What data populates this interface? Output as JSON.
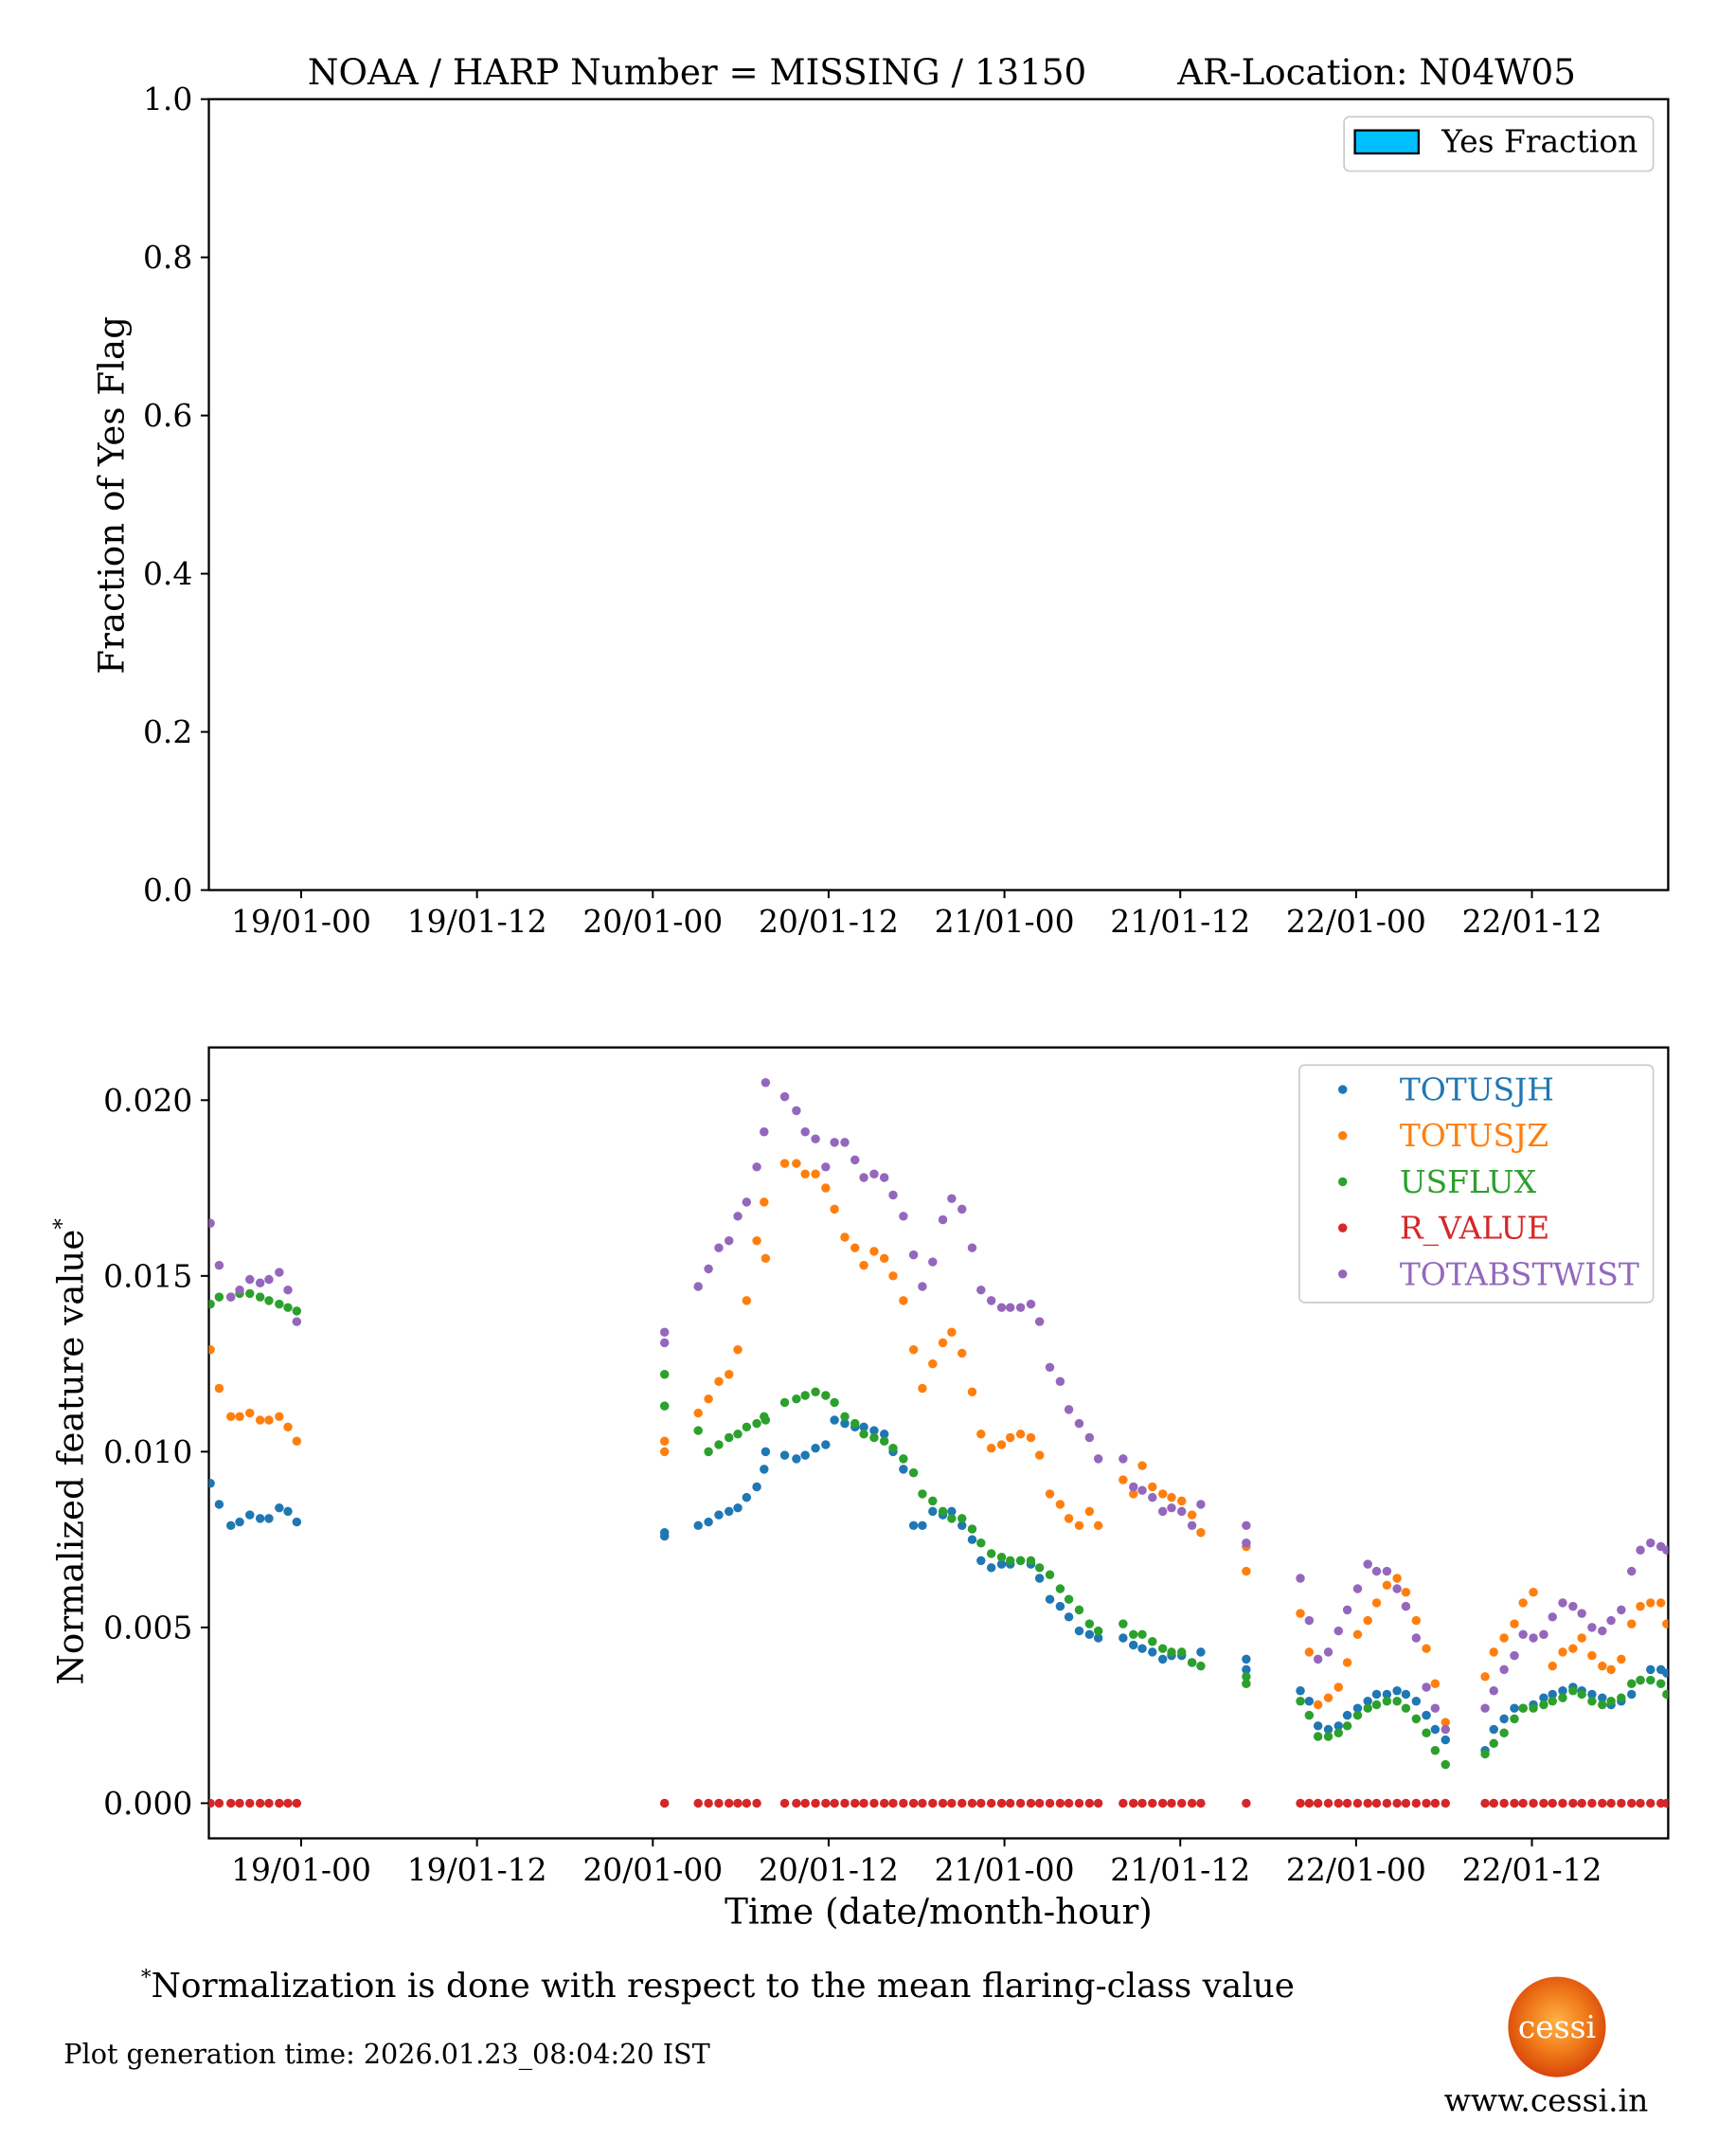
{
  "chart_data": [
    {
      "type": "bar",
      "title": "NOAA / HARP Number = MISSING / 13150      AR-Location: N04W05",
      "title_left": "NOAA / HARP Number = MISSING / 13150",
      "title_right": "AR-Location: N04W05",
      "ylabel": "Fraction of Yes Flag",
      "xlabel": "",
      "ylim": [
        0,
        1.0
      ],
      "xlim_hours": [
        -6.3,
        93.3
      ],
      "yticks": [
        "0.0",
        "0.2",
        "0.4",
        "0.6",
        "0.8",
        "1.0"
      ],
      "ytick_values": [
        0,
        0.2,
        0.4,
        0.6,
        0.8,
        1.0
      ],
      "xticks": [
        "19/01-00",
        "19/01-12",
        "20/01-00",
        "20/01-12",
        "21/01-00",
        "21/01-12",
        "22/01-00",
        "22/01-12"
      ],
      "xtick_hours": [
        0,
        12,
        24,
        36,
        48,
        60,
        72,
        84
      ],
      "legend": [
        {
          "label": "Yes Fraction",
          "color": "#00bfff"
        }
      ],
      "legend_position": "top-right",
      "values": []
    },
    {
      "type": "scatter",
      "ylabel": "Normalized feature value",
      "ylabel_sup": "*",
      "xlabel": "Time (date/month-hour)",
      "ylim": [
        -0.001,
        0.0215
      ],
      "xlim_hours": [
        -6.3,
        93.3
      ],
      "yticks": [
        "0.000",
        "0.005",
        "0.010",
        "0.015",
        "0.020"
      ],
      "ytick_values": [
        0,
        0.005,
        0.01,
        0.015,
        0.02
      ],
      "xticks": [
        "19/01-00",
        "19/01-12",
        "20/01-00",
        "20/01-12",
        "21/01-00",
        "21/01-12",
        "22/01-00",
        "22/01-12"
      ],
      "xtick_hours": [
        0,
        12,
        24,
        36,
        48,
        60,
        72,
        84
      ],
      "legend_position": "top-right",
      "x_hours": [
        -6.2,
        -5.6,
        -4.8,
        -4.2,
        -3.5,
        -2.8,
        -2.2,
        -1.5,
        -0.9,
        -0.3,
        24.8,
        24.8,
        27.1,
        27.8,
        28.5,
        29.2,
        29.8,
        30.4,
        31.1,
        31.6,
        31.7,
        33.0,
        33.8,
        34.4,
        35.1,
        35.8,
        36.4,
        37.1,
        37.8,
        38.4,
        39.1,
        39.8,
        40.4,
        41.1,
        41.8,
        42.4,
        43.1,
        43.8,
        44.4,
        45.1,
        45.8,
        46.4,
        47.1,
        47.8,
        48.4,
        49.1,
        49.8,
        50.4,
        51.1,
        51.8,
        52.4,
        53.1,
        53.8,
        54.4,
        56.1,
        56.8,
        57.4,
        58.1,
        58.8,
        59.4,
        60.1,
        60.8,
        61.4,
        64.5,
        64.5,
        68.2,
        68.8,
        69.4,
        70.1,
        70.8,
        71.4,
        72.1,
        72.8,
        73.4,
        74.1,
        74.8,
        75.4,
        76.1,
        76.8,
        77.4,
        78.1,
        80.8,
        81.4,
        82.1,
        82.8,
        83.4,
        84.1,
        84.8,
        85.4,
        86.1,
        86.8,
        87.4,
        88.1,
        88.8,
        89.4,
        90.1,
        90.8,
        91.4,
        92.1,
        92.8,
        93.2
      ],
      "series": [
        {
          "name": "TOTUSJH",
          "color": "#1f77b4",
          "values": [
            0.0091,
            0.0085,
            0.0079,
            0.008,
            0.0082,
            0.0081,
            0.0081,
            0.0084,
            0.0083,
            0.008,
            0.0076,
            0.0077,
            0.0079,
            0.008,
            0.0082,
            0.0083,
            0.0084,
            0.0087,
            0.009,
            0.0095,
            0.01,
            0.0099,
            0.0098,
            0.0099,
            0.0101,
            0.0102,
            0.0109,
            0.0108,
            0.0107,
            0.0107,
            0.0106,
            0.0105,
            0.01,
            0.0095,
            0.0079,
            0.0079,
            0.0083,
            0.0082,
            0.0083,
            0.0079,
            0.0075,
            0.0069,
            0.0067,
            0.0068,
            0.0068,
            0.0069,
            0.0068,
            0.0064,
            0.0058,
            0.0056,
            0.0053,
            0.0049,
            0.0048,
            0.0047,
            0.0047,
            0.0045,
            0.0044,
            0.0043,
            0.0041,
            0.0042,
            0.0042,
            0.004,
            0.0043,
            0.0041,
            0.0038,
            0.0032,
            0.0029,
            0.0022,
            0.0021,
            0.0022,
            0.0025,
            0.0027,
            0.0029,
            0.0031,
            0.0031,
            0.0032,
            0.0031,
            0.0029,
            0.0025,
            0.0021,
            0.0018,
            0.0015,
            0.0021,
            0.0024,
            0.0027,
            0.0027,
            0.0028,
            0.003,
            0.0031,
            0.0032,
            0.0033,
            0.0032,
            0.0031,
            0.003,
            0.0028,
            0.0029,
            0.0031,
            0.0035,
            0.0038,
            0.0038,
            0.0037
          ]
        },
        {
          "name": "TOTUSJZ",
          "color": "#ff7f0e",
          "values": [
            0.0129,
            0.0118,
            0.011,
            0.011,
            0.0111,
            0.0109,
            0.0109,
            0.011,
            0.0107,
            0.0103,
            0.01,
            0.0103,
            0.0111,
            0.0115,
            0.012,
            0.0122,
            0.0129,
            0.0143,
            0.016,
            0.0171,
            0.0155,
            0.0182,
            0.0182,
            0.0179,
            0.0179,
            0.0175,
            0.0169,
            0.0161,
            0.0158,
            0.0153,
            0.0157,
            0.0155,
            0.015,
            0.0143,
            0.0129,
            0.0118,
            0.0125,
            0.0131,
            0.0134,
            0.0128,
            0.0117,
            0.0105,
            0.0101,
            0.0102,
            0.0104,
            0.0105,
            0.0104,
            0.0099,
            0.0088,
            0.0085,
            0.0081,
            0.0079,
            0.0083,
            0.0079,
            0.0092,
            0.0088,
            0.0096,
            0.009,
            0.0088,
            0.0087,
            0.0086,
            0.0082,
            0.0077,
            0.0073,
            0.0066,
            0.0054,
            0.0043,
            0.0028,
            0.003,
            0.0033,
            0.004,
            0.0048,
            0.0052,
            0.0057,
            0.0062,
            0.0064,
            0.006,
            0.0052,
            0.0044,
            0.0034,
            0.0023,
            0.0036,
            0.0043,
            0.0047,
            0.0051,
            0.0057,
            0.006,
            0.0048,
            0.0039,
            0.0043,
            0.0044,
            0.0047,
            0.0042,
            0.0039,
            0.0038,
            0.0041,
            0.0051,
            0.0056,
            0.0057,
            0.0057,
            0.0051
          ]
        },
        {
          "name": "USFLUX",
          "color": "#2ca02c",
          "values": [
            0.0142,
            0.0144,
            0.0144,
            0.0145,
            0.0145,
            0.0144,
            0.0143,
            0.0142,
            0.0141,
            0.014,
            0.0113,
            0.0122,
            0.0106,
            0.01,
            0.0102,
            0.0104,
            0.0105,
            0.0107,
            0.0108,
            0.011,
            0.0109,
            0.0114,
            0.0115,
            0.0116,
            0.0117,
            0.0116,
            0.0114,
            0.011,
            0.0108,
            0.0105,
            0.0104,
            0.0103,
            0.0101,
            0.0098,
            0.0094,
            0.0088,
            0.0086,
            0.0083,
            0.0081,
            0.0081,
            0.0078,
            0.0074,
            0.0071,
            0.007,
            0.0069,
            0.0069,
            0.0069,
            0.0067,
            0.0065,
            0.0061,
            0.0058,
            0.0055,
            0.0051,
            0.0049,
            0.0051,
            0.0048,
            0.0048,
            0.0046,
            0.0044,
            0.0043,
            0.0043,
            0.004,
            0.0039,
            0.0036,
            0.0034,
            0.0029,
            0.0025,
            0.0019,
            0.0019,
            0.002,
            0.0022,
            0.0025,
            0.0027,
            0.0028,
            0.0029,
            0.0029,
            0.0027,
            0.0024,
            0.002,
            0.0015,
            0.0011,
            0.0014,
            0.0017,
            0.002,
            0.0024,
            0.0027,
            0.0027,
            0.0028,
            0.0029,
            0.003,
            0.0032,
            0.0031,
            0.0029,
            0.0028,
            0.0029,
            0.003,
            0.0034,
            0.0035,
            0.0035,
            0.0034,
            0.0031
          ]
        },
        {
          "name": "R_VALUE",
          "color": "#d62728",
          "values": [
            0,
            0,
            0,
            0,
            0,
            0,
            0,
            0,
            0,
            0,
            0,
            null,
            0,
            0,
            0,
            0,
            0,
            0,
            0,
            null,
            null,
            0,
            0,
            0,
            0,
            0,
            0,
            0,
            0,
            0,
            0,
            0,
            0,
            0,
            0,
            0,
            0,
            0,
            0,
            0,
            0,
            0,
            0,
            0,
            0,
            0,
            0,
            0,
            0,
            0,
            0,
            0,
            0,
            0,
            0,
            0,
            0,
            0,
            0,
            0,
            0,
            0,
            0,
            0,
            null,
            0,
            0,
            0,
            0,
            0,
            0,
            0,
            0,
            0,
            0,
            0,
            0,
            0,
            0,
            0,
            0,
            0,
            0,
            0,
            0,
            0,
            0,
            0,
            0,
            0,
            0,
            0,
            0,
            0,
            0,
            0,
            0,
            0,
            0,
            0,
            0
          ]
        },
        {
          "name": "TOTABSTWIST",
          "color": "#9467bd",
          "values": [
            0.0165,
            0.0153,
            0.0144,
            0.0146,
            0.0149,
            0.0148,
            0.0149,
            0.0151,
            0.0146,
            0.0137,
            0.0131,
            0.0134,
            0.0147,
            0.0152,
            0.0158,
            0.016,
            0.0167,
            0.0171,
            0.0181,
            0.0191,
            0.0205,
            0.0201,
            0.0197,
            0.0191,
            0.0189,
            0.0181,
            0.0188,
            0.0188,
            0.0183,
            0.0178,
            0.0179,
            0.0178,
            0.0173,
            0.0167,
            0.0156,
            0.0147,
            0.0154,
            0.0166,
            0.0172,
            0.0169,
            0.0158,
            0.0146,
            0.0143,
            0.0141,
            0.0141,
            0.0141,
            0.0142,
            0.0137,
            0.0124,
            0.012,
            0.0112,
            0.0108,
            0.0104,
            0.0098,
            0.0098,
            0.009,
            0.0089,
            0.0087,
            0.0083,
            0.0084,
            0.0083,
            0.0079,
            0.0085,
            0.0079,
            0.0074,
            0.0064,
            0.0052,
            0.0041,
            0.0043,
            0.0049,
            0.0055,
            0.0061,
            0.0068,
            0.0066,
            0.0066,
            0.0061,
            0.0056,
            0.0047,
            0.0033,
            0.0027,
            0.0021,
            0.0027,
            0.0032,
            0.0038,
            0.0042,
            0.0048,
            0.0047,
            0.0048,
            0.0053,
            0.0057,
            0.0056,
            0.0054,
            0.005,
            0.0049,
            0.0052,
            0.0055,
            0.0066,
            0.0072,
            0.0074,
            0.0073,
            0.0072
          ]
        }
      ]
    }
  ],
  "footer": {
    "note_star": "*",
    "note": "Normalization is done with respect to the mean flaring-class value",
    "generation_time": "Plot generation time: 2026.01.23_08:04:20 IST",
    "logo_text": "cessi",
    "url": "www.cessi.in"
  }
}
